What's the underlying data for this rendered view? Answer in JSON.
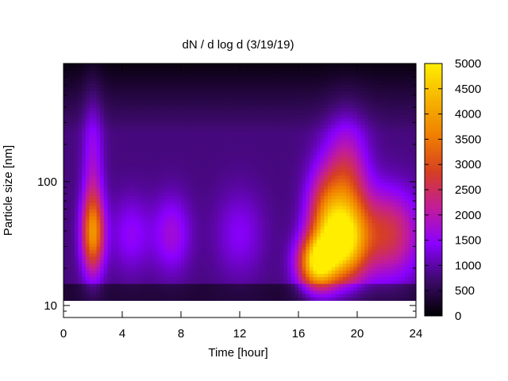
{
  "chart_data": {
    "type": "heatmap",
    "title": "dN / d log d (3/19/19)",
    "xlabel": "Time [hour]",
    "ylabel": "Particle size [nm]",
    "xlim": [
      0,
      24
    ],
    "ylim": [
      8,
      900
    ],
    "yscale": "log",
    "x_ticks": [
      0,
      4,
      8,
      12,
      16,
      20,
      24
    ],
    "y_ticks": [
      10,
      100
    ],
    "colorbar": {
      "range": [
        0,
        5000
      ],
      "ticks": [
        0,
        500,
        1000,
        1500,
        2000,
        2500,
        3000,
        3500,
        4000,
        4500,
        5000
      ],
      "colormap": [
        "#000000",
        "#3d0a6b",
        "#8a00ff",
        "#c21c9a",
        "#d73f22",
        "#f07f00",
        "#f6b400",
        "#ffee00"
      ]
    },
    "data_extent": {
      "x": [
        0,
        24
      ],
      "y": [
        11,
        900
      ]
    },
    "background_level": 800,
    "blobs": [
      {
        "t": 2.0,
        "d": 38,
        "amp": 2600,
        "wt": 0.55,
        "wd": 0.22
      },
      {
        "t": 2.0,
        "d": 120,
        "amp": 900,
        "wt": 0.5,
        "wd": 0.45
      },
      {
        "t": 4.6,
        "d": 38,
        "amp": 700,
        "wt": 1.0,
        "wd": 0.22
      },
      {
        "t": 7.4,
        "d": 38,
        "amp": 900,
        "wt": 0.9,
        "wd": 0.22
      },
      {
        "t": 12.0,
        "d": 38,
        "amp": 600,
        "wt": 1.2,
        "wd": 0.25
      },
      {
        "t": 17.2,
        "d": 22,
        "amp": 3300,
        "wt": 0.9,
        "wd": 0.15
      },
      {
        "t": 17.8,
        "d": 45,
        "amp": 2300,
        "wt": 0.9,
        "wd": 0.3
      },
      {
        "t": 19.2,
        "d": 32,
        "amp": 2900,
        "wt": 1.0,
        "wd": 0.22
      },
      {
        "t": 19.3,
        "d": 90,
        "amp": 1800,
        "wt": 1.0,
        "wd": 0.35
      },
      {
        "t": 22.0,
        "d": 38,
        "amp": 1900,
        "wt": 1.6,
        "wd": 0.25
      }
    ]
  }
}
